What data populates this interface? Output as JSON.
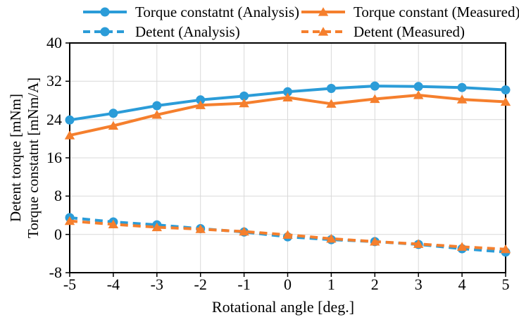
{
  "chart_data": {
    "type": "line",
    "title": "",
    "xlabel": "Rotational angle [deg.]",
    "ylabel_line1": "Detent torque [mNm]",
    "ylabel_line2": "Torque constatnt [mNm/A]",
    "xlim": [
      -5,
      5
    ],
    "ylim": [
      -8,
      40
    ],
    "xticks": [
      -5,
      -4,
      -3,
      -2,
      -1,
      0,
      1,
      2,
      3,
      4,
      5
    ],
    "yticks": [
      40,
      32,
      24,
      16,
      8,
      0,
      -8
    ],
    "grid": true,
    "legend_position": "top",
    "gridline_color": "#d9d9d9",
    "axis_color": "#000000",
    "x": [
      -5,
      -4,
      -3,
      -2,
      -1,
      0,
      1,
      2,
      3,
      4,
      5
    ],
    "series": [
      {
        "name": "Torque constatnt (Analysis)",
        "color": "#2b9cd8",
        "line": "solid",
        "marker": "circle",
        "values": [
          23.9,
          25.3,
          26.9,
          28.1,
          28.9,
          29.8,
          30.5,
          31.0,
          30.9,
          30.7,
          30.2
        ]
      },
      {
        "name": "Torque constant (Measured)",
        "color": "#f57f2d",
        "line": "solid",
        "marker": "triangle",
        "values": [
          20.7,
          22.7,
          25.0,
          27.0,
          27.4,
          28.6,
          27.3,
          28.3,
          29.1,
          28.2,
          27.7
        ]
      },
      {
        "name": "Detent (Analysis)",
        "color": "#2b9cd8",
        "line": "dashed",
        "marker": "circle",
        "values": [
          3.5,
          2.6,
          2.0,
          1.2,
          0.5,
          -0.5,
          -1.1,
          -1.5,
          -2.1,
          -3.0,
          -3.7
        ]
      },
      {
        "name": "Detent (Measured)",
        "color": "#f57f2d",
        "line": "dashed",
        "marker": "triangle",
        "values": [
          2.8,
          2.1,
          1.5,
          1.1,
          0.6,
          -0.1,
          -0.9,
          -1.5,
          -2.0,
          -2.6,
          -3.1
        ]
      }
    ]
  }
}
